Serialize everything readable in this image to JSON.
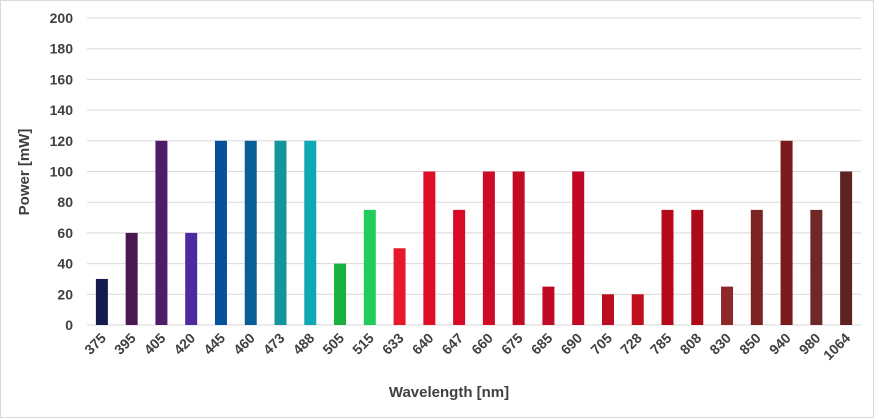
{
  "chart_data": {
    "type": "bar",
    "title": "",
    "xlabel": "Wavelength [nm]",
    "ylabel": "Power [mW]",
    "ylim": [
      0,
      200
    ],
    "yticks": [
      0,
      20,
      40,
      60,
      80,
      100,
      120,
      140,
      160,
      180,
      200
    ],
    "grid": true,
    "legend": "none",
    "categories": [
      "375",
      "395",
      "405",
      "420",
      "445",
      "460",
      "473",
      "488",
      "505",
      "515",
      "633",
      "640",
      "647",
      "660",
      "675",
      "685",
      "690",
      "705",
      "728",
      "785",
      "808",
      "830",
      "850",
      "940",
      "980",
      "1064"
    ],
    "values": [
      30,
      60,
      120,
      60,
      120,
      120,
      120,
      120,
      40,
      75,
      50,
      100,
      75,
      100,
      100,
      25,
      100,
      20,
      20,
      75,
      75,
      25,
      75,
      120,
      75,
      100
    ],
    "colors": [
      "#141b4d",
      "#4a1850",
      "#4f1d66",
      "#4e2aa0",
      "#07509a",
      "#0a5e98",
      "#12969a",
      "#10a8b4",
      "#1ab03e",
      "#1fcc5c",
      "#e8182c",
      "#e00d28",
      "#d80a28",
      "#cf0a25",
      "#c40a22",
      "#c00a25",
      "#c00a25",
      "#bc0a1e",
      "#c00f1f",
      "#b40a1a",
      "#ac0a18",
      "#8c2828",
      "#7a2424",
      "#7a1a1a",
      "#6e2828",
      "#5e2222"
    ]
  }
}
